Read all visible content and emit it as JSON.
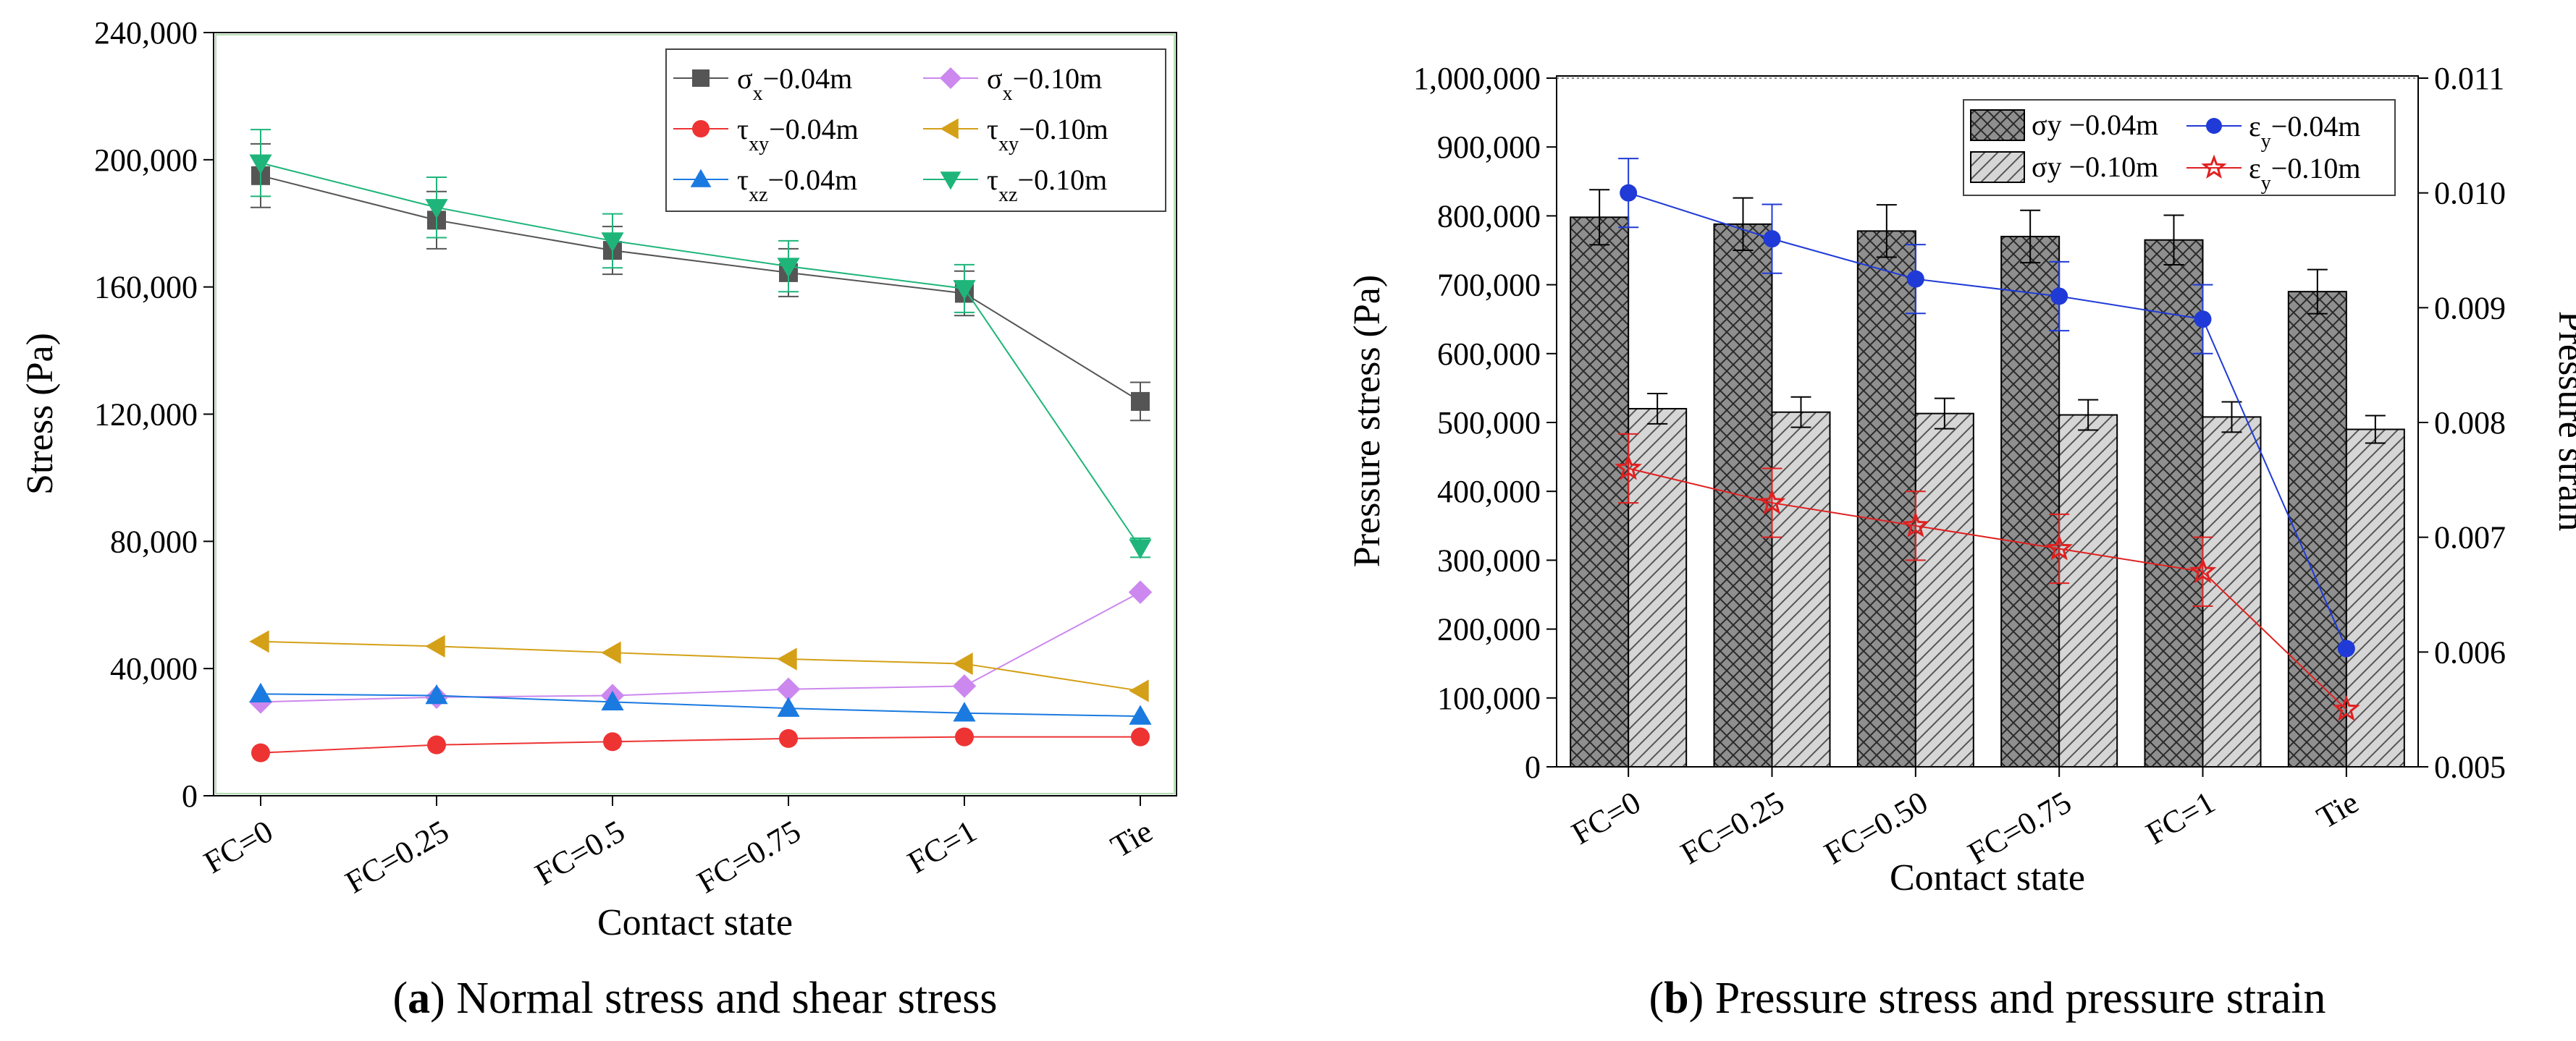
{
  "chart_data": [
    {
      "type": "line",
      "caption": {
        "prefix": "(",
        "letter": "a",
        "text": ") Normal stress and shear stress"
      },
      "xlabel": "Contact state",
      "ylabel": "Stress (Pa)",
      "categories": [
        "FC=0",
        "FC=0.25",
        "FC=0.5",
        "FC=0.75",
        "FC=1",
        "Tie"
      ],
      "ylim": [
        0,
        240000
      ],
      "yticks": [
        0,
        40000,
        80000,
        120000,
        160000,
        200000,
        240000
      ],
      "ytick_labels": [
        "0",
        "40,000",
        "80,000",
        "120,000",
        "160,000",
        "200,000",
        "240,000"
      ],
      "legend_position": "top-right",
      "series": [
        {
          "name": "σx−0.04m",
          "sym": "σ",
          "sub": "x",
          "suffix": "−0.04m",
          "color": "#555555",
          "marker": "square",
          "values": [
            195000,
            181000,
            171500,
            164500,
            158000,
            124000
          ],
          "errors": [
            10000,
            9000,
            7500,
            7500,
            7000,
            6000
          ]
        },
        {
          "name": "σx−0.10m",
          "sym": "σ",
          "sub": "x",
          "suffix": "−0.10m",
          "color": "#cc88ee",
          "marker": "diamond",
          "values": [
            29500,
            31000,
            31500,
            33500,
            34500,
            64000
          ],
          "errors": [
            0,
            0,
            0,
            0,
            0,
            0
          ]
        },
        {
          "name": "τxy−0.04m",
          "sym": "τ",
          "sub": "xy",
          "suffix": "−0.04m",
          "color": "#ee3333",
          "marker": "circle",
          "values": [
            13500,
            16000,
            17000,
            18000,
            18500,
            18500
          ],
          "errors": [
            0,
            0,
            0,
            0,
            0,
            0
          ]
        },
        {
          "name": "τxy−0.10m",
          "sym": "τ",
          "sub": "xy",
          "suffix": "−0.10m",
          "color": "#d4a017",
          "marker": "triangle-left",
          "values": [
            48500,
            47000,
            45000,
            43000,
            41500,
            33000
          ],
          "errors": [
            0,
            0,
            0,
            0,
            0,
            0
          ]
        },
        {
          "name": "τxz−0.04m",
          "sym": "τ",
          "sub": "xz",
          "suffix": "−0.04m",
          "color": "#1a7ae0",
          "marker": "triangle-up",
          "values": [
            32000,
            31500,
            29500,
            27500,
            26000,
            25000
          ],
          "errors": [
            0,
            0,
            0,
            0,
            0,
            0
          ]
        },
        {
          "name": "τxz−0.10m",
          "sym": "τ",
          "sub": "xz",
          "suffix": "−0.10m",
          "color": "#1fb57a",
          "marker": "triangle-down",
          "values": [
            199000,
            185000,
            174500,
            166500,
            159500,
            78000
          ],
          "errors": [
            10500,
            9500,
            8500,
            8000,
            7500,
            3000
          ]
        }
      ]
    },
    {
      "type": "bar",
      "caption": {
        "prefix": "(",
        "letter": "b",
        "text": ") Pressure stress and pressure strain"
      },
      "xlabel": "Contact state",
      "ylabel": "Pressure stress (Pa)",
      "y2label": "Pressure strain",
      "categories": [
        "FC=0",
        "FC=0.25",
        "FC=0.50",
        "FC=0.75",
        "FC=1",
        "Tie"
      ],
      "ylim": [
        0,
        1000000
      ],
      "yticks": [
        0,
        100000,
        200000,
        300000,
        400000,
        500000,
        600000,
        700000,
        800000,
        900000,
        1000000
      ],
      "ytick_labels": [
        "0",
        "100,000",
        "200,000",
        "300,000",
        "400,000",
        "500,000",
        "600,000",
        "700,000",
        "800,000",
        "900,000",
        "1,000,000"
      ],
      "y2lim": [
        0.005,
        0.011
      ],
      "y2ticks": [
        0.005,
        0.006,
        0.007,
        0.008,
        0.009,
        0.01,
        0.011
      ],
      "y2tick_labels": [
        "0.005",
        "0.006",
        "0.007",
        "0.008",
        "0.009",
        "0.010",
        "0.011"
      ],
      "legend_position": "top-right",
      "bar_series": [
        {
          "name": "σy −0.04m",
          "fill": "#8f8f8f",
          "hatch": "crosshatch",
          "values": [
            798000,
            788000,
            778000,
            770000,
            765000,
            690000
          ],
          "errors": [
            40000,
            38000,
            38000,
            38000,
            36000,
            32000
          ]
        },
        {
          "name": "σy −0.10m",
          "fill": "#d6d6d6",
          "hatch": "diagonal",
          "values": [
            520000,
            515000,
            513000,
            511000,
            508000,
            490000
          ],
          "errors": [
            22000,
            22000,
            22000,
            22000,
            22000,
            20000
          ]
        }
      ],
      "line_series": [
        {
          "name": "εy−0.04m",
          "sym": "ε",
          "sub": "y",
          "suffix": "−0.04m",
          "color": "#1f3ad6",
          "marker": "circle",
          "values": [
            0.01,
            0.0096,
            0.00925,
            0.0091,
            0.0089,
            0.00603
          ],
          "errors": [
            0.0003,
            0.0003,
            0.0003,
            0.0003,
            0.0003,
            0
          ]
        },
        {
          "name": "εy−0.10m",
          "sym": "ε",
          "sub": "y",
          "suffix": "−0.10m",
          "color": "#e02020",
          "marker": "star",
          "values": [
            0.0076,
            0.0073,
            0.0071,
            0.0069,
            0.0067,
            0.0055
          ],
          "errors": [
            0.0003,
            0.0003,
            0.0003,
            0.0003,
            0.0003,
            0
          ]
        }
      ]
    }
  ]
}
